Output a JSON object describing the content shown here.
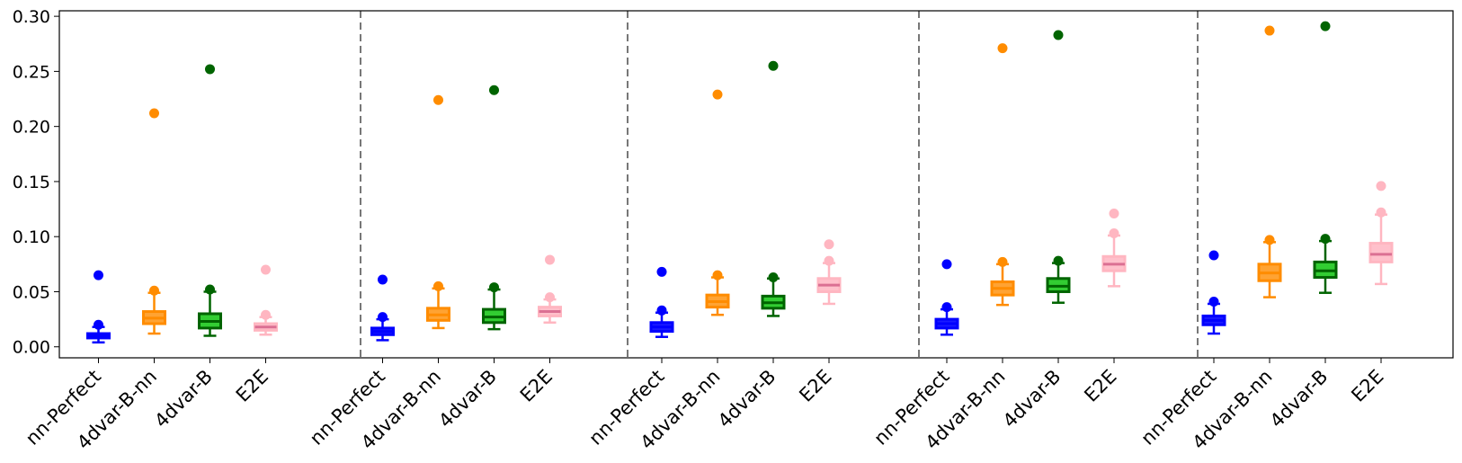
{
  "chart_data": {
    "type": "box",
    "title": "",
    "xlabel": "",
    "ylabel": "",
    "ylim": [
      -0.01,
      0.305
    ],
    "yticks": [
      "0.00",
      "0.05",
      "0.10",
      "0.15",
      "0.20",
      "0.25",
      "0.30"
    ],
    "grid": false,
    "legend": "none",
    "categories": [
      "nn-Perfect",
      "4dvar-B-nn",
      "4dvar-B",
      "E2E"
    ],
    "colors": {
      "nn-Perfect": {
        "edge": "#0000ff",
        "fill": "#1a1aff",
        "median": "#0000ff",
        "flier": "#0000ff"
      },
      "4dvar-B-nn": {
        "edge": "#ff8c00",
        "fill": "#ffa333",
        "median": "#ff8c00",
        "flier": "#ff8c00"
      },
      "4dvar-B": {
        "edge": "#006400",
        "fill": "#32cd32",
        "median": "#006400",
        "flier": "#006400"
      },
      "E2E": {
        "edge": "#ffb6c1",
        "fill": "#ffc0cb",
        "median": "#db7093",
        "flier": "#ffb6c1"
      }
    },
    "groups": [
      {
        "boxes": [
          {
            "category": "nn-Perfect",
            "whislo": 0.004,
            "q1": 0.008,
            "med": 0.01,
            "q3": 0.012,
            "whishi": 0.018,
            "fliers": [
              0.02,
              0.065
            ]
          },
          {
            "category": "4dvar-B-nn",
            "whislo": 0.012,
            "q1": 0.021,
            "med": 0.026,
            "q3": 0.032,
            "whishi": 0.049,
            "fliers": [
              0.051,
              0.212
            ]
          },
          {
            "category": "4dvar-B",
            "whislo": 0.01,
            "q1": 0.017,
            "med": 0.023,
            "q3": 0.03,
            "whishi": 0.05,
            "fliers": [
              0.052,
              0.252
            ]
          },
          {
            "category": "E2E",
            "whislo": 0.011,
            "q1": 0.015,
            "med": 0.018,
            "q3": 0.021,
            "whishi": 0.027,
            "fliers": [
              0.029,
              0.07
            ]
          }
        ]
      },
      {
        "boxes": [
          {
            "category": "nn-Perfect",
            "whislo": 0.006,
            "q1": 0.011,
            "med": 0.014,
            "q3": 0.017,
            "whishi": 0.025,
            "fliers": [
              0.027,
              0.061
            ]
          },
          {
            "category": "4dvar-B-nn",
            "whislo": 0.017,
            "q1": 0.024,
            "med": 0.029,
            "q3": 0.035,
            "whishi": 0.053,
            "fliers": [
              0.055,
              0.224
            ]
          },
          {
            "category": "4dvar-B",
            "whislo": 0.016,
            "q1": 0.022,
            "med": 0.027,
            "q3": 0.034,
            "whishi": 0.052,
            "fliers": [
              0.054,
              0.233
            ]
          },
          {
            "category": "E2E",
            "whislo": 0.022,
            "q1": 0.028,
            "med": 0.032,
            "q3": 0.036,
            "whishi": 0.043,
            "fliers": [
              0.045,
              0.079
            ]
          }
        ]
      },
      {
        "boxes": [
          {
            "category": "nn-Perfect",
            "whislo": 0.009,
            "q1": 0.014,
            "med": 0.018,
            "q3": 0.022,
            "whishi": 0.031,
            "fliers": [
              0.033,
              0.068
            ]
          },
          {
            "category": "4dvar-B-nn",
            "whislo": 0.029,
            "q1": 0.036,
            "med": 0.041,
            "q3": 0.047,
            "whishi": 0.063,
            "fliers": [
              0.065,
              0.229
            ]
          },
          {
            "category": "4dvar-B",
            "whislo": 0.028,
            "q1": 0.035,
            "med": 0.04,
            "q3": 0.046,
            "whishi": 0.062,
            "fliers": [
              0.063,
              0.255
            ]
          },
          {
            "category": "E2E",
            "whislo": 0.039,
            "q1": 0.05,
            "med": 0.056,
            "q3": 0.062,
            "whishi": 0.076,
            "fliers": [
              0.078,
              0.093
            ]
          }
        ]
      },
      {
        "boxes": [
          {
            "category": "nn-Perfect",
            "whislo": 0.011,
            "q1": 0.017,
            "med": 0.021,
            "q3": 0.025,
            "whishi": 0.034,
            "fliers": [
              0.036,
              0.075
            ]
          },
          {
            "category": "4dvar-B-nn",
            "whislo": 0.038,
            "q1": 0.047,
            "med": 0.053,
            "q3": 0.059,
            "whishi": 0.075,
            "fliers": [
              0.077,
              0.271
            ]
          },
          {
            "category": "4dvar-B",
            "whislo": 0.04,
            "q1": 0.05,
            "med": 0.055,
            "q3": 0.062,
            "whishi": 0.076,
            "fliers": [
              0.078,
              0.283
            ]
          },
          {
            "category": "E2E",
            "whislo": 0.055,
            "q1": 0.069,
            "med": 0.075,
            "q3": 0.082,
            "whishi": 0.101,
            "fliers": [
              0.103,
              0.121
            ]
          }
        ]
      },
      {
        "boxes": [
          {
            "category": "nn-Perfect",
            "whislo": 0.012,
            "q1": 0.02,
            "med": 0.024,
            "q3": 0.028,
            "whishi": 0.039,
            "fliers": [
              0.041,
              0.083
            ]
          },
          {
            "category": "4dvar-B-nn",
            "whislo": 0.045,
            "q1": 0.06,
            "med": 0.067,
            "q3": 0.075,
            "whishi": 0.095,
            "fliers": [
              0.097,
              0.287
            ]
          },
          {
            "category": "4dvar-B",
            "whislo": 0.049,
            "q1": 0.063,
            "med": 0.069,
            "q3": 0.077,
            "whishi": 0.096,
            "fliers": [
              0.098,
              0.291
            ]
          },
          {
            "category": "E2E",
            "whislo": 0.057,
            "q1": 0.077,
            "med": 0.084,
            "q3": 0.094,
            "whishi": 0.12,
            "fliers": [
              0.122,
              0.146
            ]
          }
        ]
      }
    ]
  }
}
